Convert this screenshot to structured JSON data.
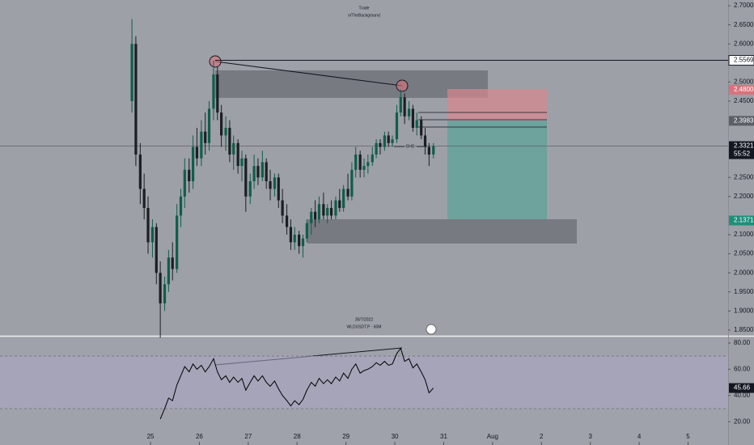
{
  "chart_data": [
    {
      "type": "candlestick",
      "annotations": [
        "Trade",
        "n/TheBackground",
        "30/7/2022",
        "WLDUSDT.P · 60M",
        "CHC"
      ],
      "x": [
        24.62,
        24.7,
        24.79,
        24.87,
        24.95,
        25.04,
        25.12,
        25.2,
        25.29,
        25.37,
        25.45,
        25.54,
        25.62,
        25.7,
        25.79,
        25.87,
        25.95,
        26.04,
        26.12,
        26.2,
        26.29,
        26.37,
        26.45,
        26.54,
        26.62,
        26.7,
        26.79,
        26.87,
        26.95,
        27.04,
        27.12,
        27.2,
        27.29,
        27.37,
        27.45,
        27.54,
        27.62,
        27.7,
        27.79,
        27.87,
        27.95,
        28.04,
        28.12,
        28.2,
        28.29,
        28.37,
        28.45,
        28.54,
        28.62,
        28.7,
        28.79,
        28.87,
        28.95,
        29.04,
        29.12,
        29.2,
        29.29,
        29.37,
        29.45,
        29.54,
        29.62,
        29.7,
        29.79,
        29.87,
        29.95,
        30.04,
        30.12,
        30.2,
        30.29,
        30.37,
        30.45,
        30.54,
        30.62,
        30.7,
        30.79
      ],
      "open": [
        2.45,
        2.6,
        2.31,
        2.22,
        2.17,
        2.08,
        2.12,
        2.0,
        1.92,
        1.97,
        2.04,
        2.01,
        2.15,
        2.2,
        2.27,
        2.24,
        2.33,
        2.3,
        2.37,
        2.34,
        2.43,
        2.52,
        2.42,
        2.36,
        2.38,
        2.31,
        2.34,
        2.28,
        2.3,
        2.2,
        2.24,
        2.28,
        2.25,
        2.29,
        2.24,
        2.22,
        2.25,
        2.19,
        2.15,
        2.12,
        2.08,
        2.1,
        2.07,
        2.09,
        2.13,
        2.16,
        2.14,
        2.18,
        2.15,
        2.17,
        2.15,
        2.19,
        2.17,
        2.22,
        2.2,
        2.27,
        2.31,
        2.27,
        2.28,
        2.29,
        2.31,
        2.34,
        2.33,
        2.36,
        2.34,
        2.35,
        2.42,
        2.46,
        2.41,
        2.43,
        2.38,
        2.4,
        2.36,
        2.33,
        2.31
      ],
      "high": [
        2.665,
        2.62,
        2.34,
        2.26,
        2.2,
        2.14,
        2.13,
        2.03,
        1.99,
        2.06,
        2.08,
        2.18,
        2.22,
        2.3,
        2.3,
        2.36,
        2.38,
        2.4,
        2.42,
        2.45,
        2.556,
        2.54,
        2.44,
        2.41,
        2.4,
        2.36,
        2.35,
        2.32,
        2.31,
        2.26,
        2.31,
        2.3,
        2.32,
        2.3,
        2.27,
        2.26,
        2.26,
        2.22,
        2.18,
        2.14,
        2.12,
        2.11,
        2.1,
        2.14,
        2.17,
        2.19,
        2.2,
        2.21,
        2.18,
        2.19,
        2.2,
        2.22,
        2.23,
        2.26,
        2.29,
        2.33,
        2.32,
        2.3,
        2.31,
        2.33,
        2.35,
        2.35,
        2.37,
        2.37,
        2.36,
        2.44,
        2.48,
        2.47,
        2.45,
        2.44,
        2.42,
        2.41,
        2.38,
        2.34,
        2.34
      ],
      "low": [
        2.42,
        2.28,
        2.18,
        2.14,
        2.05,
        2.04,
        1.97,
        1.83,
        1.9,
        1.95,
        1.98,
        2.0,
        2.12,
        2.17,
        2.21,
        2.22,
        2.28,
        2.28,
        2.31,
        2.32,
        2.4,
        2.4,
        2.33,
        2.32,
        2.29,
        2.27,
        2.26,
        2.24,
        2.16,
        2.18,
        2.22,
        2.23,
        2.24,
        2.22,
        2.19,
        2.2,
        2.17,
        2.13,
        2.1,
        2.06,
        2.06,
        2.05,
        2.04,
        2.08,
        2.1,
        2.12,
        2.13,
        2.14,
        2.13,
        2.14,
        2.14,
        2.16,
        2.16,
        2.19,
        2.19,
        2.25,
        2.25,
        2.25,
        2.26,
        2.28,
        2.3,
        2.31,
        2.32,
        2.33,
        2.33,
        2.34,
        2.41,
        2.39,
        2.4,
        2.37,
        2.36,
        2.35,
        2.31,
        2.28,
        2.3
      ],
      "close": [
        2.6,
        2.31,
        2.22,
        2.17,
        2.08,
        2.12,
        2.0,
        1.92,
        1.97,
        2.04,
        2.01,
        2.15,
        2.2,
        2.27,
        2.24,
        2.33,
        2.3,
        2.37,
        2.34,
        2.43,
        2.52,
        2.42,
        2.36,
        2.38,
        2.31,
        2.34,
        2.28,
        2.3,
        2.2,
        2.24,
        2.28,
        2.25,
        2.29,
        2.24,
        2.22,
        2.25,
        2.19,
        2.15,
        2.12,
        2.08,
        2.1,
        2.07,
        2.09,
        2.13,
        2.16,
        2.14,
        2.18,
        2.15,
        2.17,
        2.15,
        2.19,
        2.17,
        2.22,
        2.2,
        2.27,
        2.31,
        2.27,
        2.28,
        2.29,
        2.31,
        2.34,
        2.33,
        2.36,
        2.34,
        2.35,
        2.42,
        2.46,
        2.41,
        2.43,
        2.38,
        2.4,
        2.36,
        2.33,
        2.31,
        2.3321
      ],
      "up_color": "#0f5e4a",
      "down_color": "#1b1f24",
      "xlim": [
        21.92,
        36.82
      ],
      "xticks": [
        25,
        26,
        27,
        28,
        29,
        30,
        31,
        {
          "value": 32,
          "label": "Aug"
        },
        {
          "value": 33,
          "label": "2"
        },
        {
          "value": 34,
          "label": "3"
        },
        {
          "value": 35,
          "label": "4"
        },
        {
          "value": 36,
          "label": "5"
        }
      ],
      "ylim": [
        1.835,
        2.715
      ],
      "yticks": [
        {
          "value": 2.7,
          "label": "2.7000"
        },
        {
          "value": 2.65,
          "label": "2.6500"
        },
        {
          "value": 2.6,
          "label": "2.6000"
        },
        {
          "value": 2.5,
          "label": "2.5000"
        },
        {
          "value": 2.45,
          "label": "2.4500"
        },
        {
          "value": 2.25,
          "label": "2.2500"
        },
        {
          "value": 2.2,
          "label": "2.2000"
        },
        {
          "value": 2.1,
          "label": "2.1000"
        },
        {
          "value": 2.05,
          "label": "2.0500"
        },
        {
          "value": 2.0,
          "label": "2.0000"
        },
        {
          "value": 1.95,
          "label": "1.9500"
        },
        {
          "value": 1.9,
          "label": "1.9000"
        },
        {
          "value": 1.85,
          "label": "1.8500"
        }
      ],
      "price_labels": [
        {
          "value": 2.5569,
          "label": "2.5569",
          "color": "#ffffff"
        },
        {
          "value": 2.48,
          "label": "2.4800",
          "color": "#d9727c"
        },
        {
          "value": 2.3983,
          "label": "2.3983",
          "color": "#5b6067"
        },
        {
          "value": 2.3321,
          "label": "2.3321",
          "color": "#131722"
        },
        {
          "value": 2.1371,
          "label": "2.1371",
          "color": "#1e8f7a"
        }
      ],
      "countdown": "55:52"
    },
    {
      "type": "line",
      "values": [
        null,
        null,
        null,
        null,
        null,
        null,
        null,
        22,
        30,
        38,
        36,
        48,
        55,
        62,
        58,
        64,
        60,
        63,
        58,
        62,
        68,
        58,
        52,
        55,
        50,
        54,
        50,
        53,
        44,
        50,
        55,
        51,
        55,
        50,
        47,
        51,
        45,
        40,
        36,
        32,
        36,
        33,
        37,
        44,
        50,
        47,
        53,
        49,
        52,
        49,
        54,
        51,
        57,
        53,
        60,
        64,
        57,
        59,
        60,
        62,
        65,
        63,
        66,
        63,
        64,
        72,
        76,
        66,
        68,
        61,
        64,
        58,
        52,
        42,
        45.66
      ],
      "value_labels": {
        "74": "45.66"
      },
      "color": "#000000",
      "ylim": [
        2.2,
        84.9
      ],
      "yticks": [
        {
          "value": 80,
          "label": "80.00"
        },
        {
          "value": 60,
          "label": "60.00"
        },
        {
          "value": 40,
          "label": "40.00"
        },
        {
          "value": 20,
          "label": "20.00"
        }
      ],
      "bands": [
        30,
        70
      ]
    }
  ]
}
